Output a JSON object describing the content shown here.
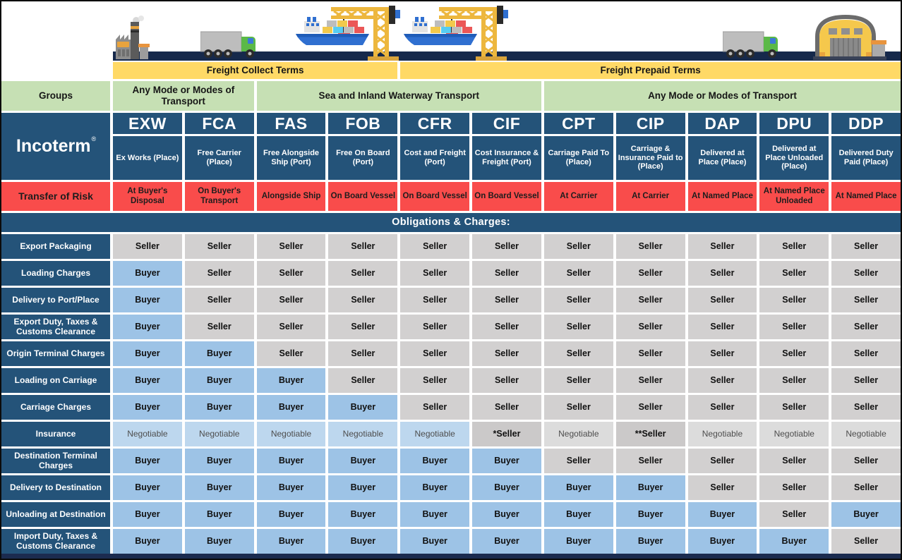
{
  "banners": {
    "freight_collect": "Freight Collect Terms",
    "freight_prepaid": "Freight Prepaid Terms"
  },
  "groups_row": {
    "label": "Groups",
    "segments": [
      {
        "text": "Any Mode or Modes of Transport",
        "span": 2
      },
      {
        "text": "Sea and Inland Waterway Transport",
        "span": 4
      },
      {
        "text": "Any Mode or Modes of Transport",
        "span": 5
      }
    ]
  },
  "incoterm_header": {
    "label": "Incoterm",
    "registered_mark": "®"
  },
  "risk_row_label": "Transfer of Risk",
  "obligations_banner": "Obligations & Charges:",
  "incoterms": [
    {
      "code": "EXW",
      "name": "Ex Works (Place)",
      "risk": "At Buyer's Disposal"
    },
    {
      "code": "FCA",
      "name": "Free Carrier (Place)",
      "risk": "On Buyer's Transport"
    },
    {
      "code": "FAS",
      "name": "Free Alongside Ship (Port)",
      "risk": "Alongside Ship"
    },
    {
      "code": "FOB",
      "name": "Free On Board (Port)",
      "risk": "On Board Vessel"
    },
    {
      "code": "CFR",
      "name": "Cost and Freight (Port)",
      "risk": "On Board Vessel"
    },
    {
      "code": "CIF",
      "name": "Cost Insurance & Freight (Port)",
      "risk": "On Board Vessel"
    },
    {
      "code": "CPT",
      "name": "Carriage Paid To (Place)",
      "risk": "At Carrier"
    },
    {
      "code": "CIP",
      "name": "Carriage & Insurance Paid to (Place)",
      "risk": "At Carrier"
    },
    {
      "code": "DAP",
      "name": "Delivered at Place (Place)",
      "risk": "At Named Place"
    },
    {
      "code": "DPU",
      "name": "Delivered at Place Unloaded (Place)",
      "risk": "At Named Place Unloaded"
    },
    {
      "code": "DDP",
      "name": "Delivered Duty Paid (Place)",
      "risk": "At Named Place"
    }
  ],
  "cell_types": {
    "S": {
      "text": "Seller",
      "bg": "#D2D0D0",
      "bold": true
    },
    "B": {
      "text": "Buyer",
      "bg": "#9DC3E6",
      "bold": true
    },
    "N": {
      "text": "Negotiable",
      "bg": "#BDD7EE",
      "bold": false
    },
    "NG": {
      "text": "Negotiable",
      "bg": "#DCDCDC",
      "bold": false
    },
    "S1": {
      "text": "*Seller",
      "bg": "#CBC9C9",
      "bold": true
    },
    "S2": {
      "text": "**Seller",
      "bg": "#CBC9C9",
      "bold": true
    }
  },
  "obligation_rows": [
    {
      "label": "Export Packaging",
      "cells": [
        "S",
        "S",
        "S",
        "S",
        "S",
        "S",
        "S",
        "S",
        "S",
        "S",
        "S"
      ]
    },
    {
      "label": "Loading Charges",
      "cells": [
        "B",
        "S",
        "S",
        "S",
        "S",
        "S",
        "S",
        "S",
        "S",
        "S",
        "S"
      ]
    },
    {
      "label": "Delivery to Port/Place",
      "cells": [
        "B",
        "S",
        "S",
        "S",
        "S",
        "S",
        "S",
        "S",
        "S",
        "S",
        "S"
      ]
    },
    {
      "label": "Export Duty, Taxes & Customs Clearance",
      "cells": [
        "B",
        "S",
        "S",
        "S",
        "S",
        "S",
        "S",
        "S",
        "S",
        "S",
        "S"
      ]
    },
    {
      "label": "Origin Terminal Charges",
      "cells": [
        "B",
        "B",
        "S",
        "S",
        "S",
        "S",
        "S",
        "S",
        "S",
        "S",
        "S"
      ]
    },
    {
      "label": "Loading on Carriage",
      "cells": [
        "B",
        "B",
        "B",
        "S",
        "S",
        "S",
        "S",
        "S",
        "S",
        "S",
        "S"
      ]
    },
    {
      "label": "Carriage Charges",
      "cells": [
        "B",
        "B",
        "B",
        "B",
        "S",
        "S",
        "S",
        "S",
        "S",
        "S",
        "S"
      ]
    },
    {
      "label": "Insurance",
      "cells": [
        "N",
        "N",
        "N",
        "N",
        "N",
        "S1",
        "NG",
        "S2",
        "NG",
        "NG",
        "NG"
      ]
    },
    {
      "label": "Destination Terminal Charges",
      "cells": [
        "B",
        "B",
        "B",
        "B",
        "B",
        "B",
        "S",
        "S",
        "S",
        "S",
        "S"
      ]
    },
    {
      "label": "Delivery to Destination",
      "cells": [
        "B",
        "B",
        "B",
        "B",
        "B",
        "B",
        "B",
        "B",
        "S",
        "S",
        "S"
      ]
    },
    {
      "label": "Unloading at Destination",
      "cells": [
        "B",
        "B",
        "B",
        "B",
        "B",
        "B",
        "B",
        "B",
        "B",
        "S",
        "B"
      ]
    },
    {
      "label": "Import Duty, Taxes & Customs Clearance",
      "cells": [
        "B",
        "B",
        "B",
        "B",
        "B",
        "B",
        "B",
        "B",
        "B",
        "B",
        "S"
      ]
    }
  ],
  "colors": {
    "navy": "#245379",
    "red": "#F94C4B",
    "yellow": "#FFD966",
    "green": "#C6E0B4",
    "road": "#16294B",
    "seller_bg": "#D2D0D0",
    "buyer_bg": "#9DC3E6",
    "negotiable_blue_bg": "#BDD7EE",
    "negotiable_gray_bg": "#DCDCDC"
  },
  "illustration_icons": [
    "factory",
    "truck",
    "cargo-ship",
    "harbor-crane",
    "harbor-crane",
    "cargo-ship",
    "truck",
    "warehouse"
  ]
}
